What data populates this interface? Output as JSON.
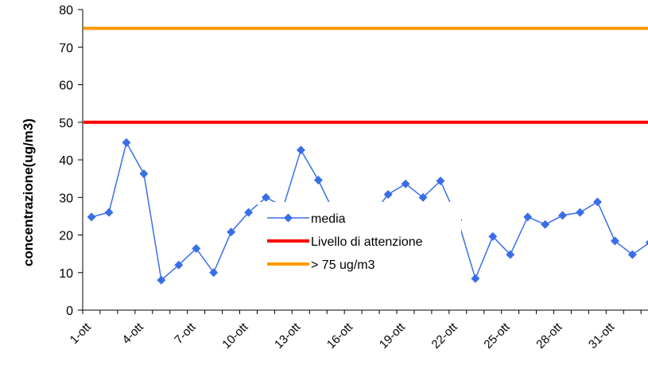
{
  "chart_data": {
    "type": "line",
    "ylabel": "concentrazione(ug/m3)",
    "xlabel": "",
    "ylim": [
      0,
      80
    ],
    "yticks": [
      0,
      10,
      20,
      30,
      40,
      50,
      60,
      70,
      80
    ],
    "xlim": [
      1,
      33
    ],
    "x_tick_labels": [
      "1-ott",
      "4-ott",
      "7-ott",
      "10-ott",
      "13-ott",
      "16-ott",
      "19-ott",
      "22-ott",
      "25-ott",
      "28-ott",
      "31-ott"
    ],
    "grid": false,
    "legend_position": "center",
    "series": [
      {
        "name": "media",
        "color": "#3A6EE8",
        "marker": "diamond",
        "points": [
          [
            1,
            24.8
          ],
          [
            2,
            26.0
          ],
          [
            3,
            44.6
          ],
          [
            4,
            36.3
          ],
          [
            5,
            8.0
          ],
          [
            6,
            12.0
          ],
          [
            7,
            16.4
          ],
          [
            8,
            10.0
          ],
          [
            9,
            20.8
          ],
          [
            10,
            26.0
          ],
          [
            11,
            30.0
          ],
          [
            12,
            27.6
          ],
          [
            13,
            42.6
          ],
          [
            14,
            34.6
          ],
          [
            15,
            25.0
          ],
          [
            16,
            25.0
          ],
          [
            17,
            25.0
          ],
          [
            18,
            30.8
          ],
          [
            19,
            33.6
          ],
          [
            20,
            30.0
          ],
          [
            21,
            34.4
          ],
          [
            22,
            24.0
          ],
          [
            23,
            8.4
          ],
          [
            24,
            19.6
          ],
          [
            25,
            14.8
          ],
          [
            26,
            24.8
          ],
          [
            27,
            22.8
          ],
          [
            28,
            25.2
          ],
          [
            29,
            26.0
          ],
          [
            30,
            28.8
          ],
          [
            31,
            18.4
          ],
          [
            32,
            14.8
          ],
          [
            33,
            18.0
          ]
        ]
      },
      {
        "name": "Livello di attenzione",
        "color": "#FF0000",
        "constant": 50
      },
      {
        "name": "> 75 ug/m3",
        "color": "#FF9900",
        "constant": 75
      }
    ]
  }
}
